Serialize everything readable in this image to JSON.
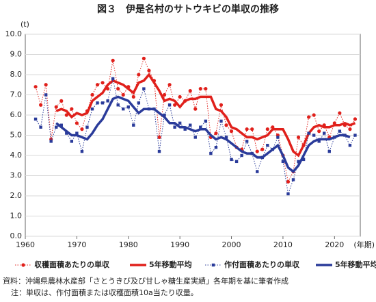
{
  "chart_data": {
    "type": "line",
    "title": "図３　伊是名村のサトウキビの単収の推移",
    "y_unit": "(t)",
    "x_unit": "(年期)",
    "xlim": [
      1960,
      2025
    ],
    "xticks": [
      1960,
      1970,
      1980,
      1990,
      2000,
      2010,
      2020
    ],
    "ylim": [
      0,
      10
    ],
    "yticks": [
      {
        "value": 0,
        "label": "0.0"
      },
      {
        "value": 1,
        "label": "1.0"
      },
      {
        "value": 2,
        "label": "2.0"
      },
      {
        "value": 3,
        "label": "3.0"
      },
      {
        "value": 4,
        "label": "4.0"
      },
      {
        "value": 5,
        "label": "5.0"
      },
      {
        "value": 6,
        "label": "6.0"
      },
      {
        "value": 7,
        "label": "7.0"
      },
      {
        "value": 8,
        "label": "8.0"
      },
      {
        "value": 9,
        "label": "9.0"
      },
      {
        "value": 10,
        "label": "10.0"
      }
    ],
    "grid": true,
    "series": [
      {
        "name": "収穫面積あたりの単収",
        "color": "#e0201b",
        "style": "dotted",
        "marker": "circle",
        "x": [
          1962,
          1963,
          1964,
          1965,
          1966,
          1967,
          1968,
          1969,
          1970,
          1971,
          1972,
          1973,
          1974,
          1975,
          1976,
          1977,
          1978,
          1979,
          1980,
          1981,
          1982,
          1983,
          1984,
          1985,
          1986,
          1987,
          1988,
          1989,
          1990,
          1991,
          1992,
          1993,
          1994,
          1995,
          1996,
          1997,
          1998,
          1999,
          2000,
          2001,
          2002,
          2003,
          2004,
          2005,
          2006,
          2007,
          2008,
          2009,
          2010,
          2011,
          2012,
          2013,
          2014,
          2015,
          2016,
          2017,
          2018,
          2019,
          2020,
          2021,
          2022,
          2023,
          2024
        ],
        "values": [
          7.4,
          6.5,
          7.5,
          4.8,
          6.4,
          6.7,
          6.0,
          6.3,
          5.6,
          5.3,
          6.2,
          7.0,
          7.5,
          7.6,
          7.3,
          8.7,
          7.3,
          7.0,
          7.4,
          6.9,
          8.0,
          8.8,
          8.2,
          7.7,
          4.9,
          7.0,
          7.5,
          6.5,
          6.9,
          6.7,
          7.2,
          6.3,
          7.3,
          7.3,
          4.9,
          5.1,
          6.5,
          5.5,
          5.2,
          4.4,
          4.3,
          5.3,
          5.3,
          4.2,
          4.3,
          5.3,
          5.4,
          5.0,
          4.0,
          2.7,
          3.2,
          4.9,
          4.5,
          5.9,
          6.0,
          5.2,
          5.5,
          4.9,
          5.6,
          6.1,
          5.5,
          5.3,
          5.8
        ]
      },
      {
        "name": "5年移動平均",
        "color": "#e0201b",
        "style": "thick",
        "x": [
          1966,
          1967,
          1968,
          1969,
          1970,
          1971,
          1972,
          1973,
          1974,
          1975,
          1976,
          1977,
          1978,
          1979,
          1980,
          1981,
          1982,
          1983,
          1984,
          1985,
          1986,
          1987,
          1988,
          1989,
          1990,
          1991,
          1992,
          1993,
          1994,
          1995,
          1996,
          1997,
          1998,
          1999,
          2000,
          2001,
          2002,
          2003,
          2004,
          2005,
          2006,
          2007,
          2008,
          2009,
          2010,
          2011,
          2012,
          2013,
          2014,
          2015,
          2016,
          2017,
          2018,
          2019,
          2020,
          2021,
          2022,
          2023,
          2024
        ],
        "values": [
          6.2,
          6.3,
          6.2,
          5.9,
          6.1,
          6.0,
          6.1,
          6.7,
          6.9,
          7.1,
          7.5,
          7.7,
          7.6,
          7.5,
          7.3,
          7.1,
          7.6,
          7.7,
          8.0,
          7.6,
          7.2,
          6.7,
          6.8,
          6.7,
          6.4,
          6.7,
          6.8,
          6.8,
          6.9,
          6.9,
          6.9,
          6.3,
          6.2,
          5.9,
          5.4,
          5.3,
          5.1,
          4.9,
          4.9,
          4.8,
          4.9,
          5.0,
          5.3,
          5.3,
          5.3,
          4.8,
          4.2,
          4.0,
          4.5,
          5.1,
          5.4,
          5.5,
          5.4,
          5.4,
          5.5,
          5.5,
          5.6,
          5.5,
          5.6
        ]
      },
      {
        "name": "作付面積あたりの単収",
        "color": "#2a3b9a",
        "style": "dotted",
        "marker": "square",
        "x": [
          1962,
          1963,
          1964,
          1965,
          1966,
          1967,
          1968,
          1969,
          1970,
          1971,
          1972,
          1973,
          1974,
          1975,
          1976,
          1977,
          1978,
          1979,
          1980,
          1981,
          1982,
          1983,
          1984,
          1985,
          1986,
          1987,
          1988,
          1989,
          1990,
          1991,
          1992,
          1993,
          1994,
          1995,
          1996,
          1997,
          1998,
          1999,
          2000,
          2001,
          2002,
          2003,
          2004,
          2005,
          2006,
          2007,
          2008,
          2009,
          2010,
          2011,
          2012,
          2013,
          2014,
          2015,
          2016,
          2017,
          2018,
          2019,
          2020,
          2021,
          2022,
          2023,
          2024
        ],
        "values": [
          5.8,
          5.4,
          7.0,
          4.7,
          5.4,
          5.5,
          5.1,
          4.7,
          5.1,
          4.2,
          5.4,
          6.3,
          6.6,
          6.6,
          6.7,
          7.8,
          6.5,
          6.3,
          6.4,
          5.5,
          6.6,
          7.3,
          6.3,
          6.3,
          4.2,
          6.0,
          6.5,
          5.4,
          5.6,
          5.3,
          5.5,
          4.9,
          5.4,
          5.7,
          4.1,
          4.4,
          5.7,
          4.9,
          3.8,
          3.7,
          4.0,
          4.7,
          4.1,
          3.2,
          3.9,
          4.5,
          4.3,
          4.9,
          3.7,
          2.1,
          2.8,
          3.7,
          3.8,
          5.1,
          5.0,
          4.7,
          5.1,
          4.2,
          4.9,
          5.2,
          5.0,
          4.5,
          5.0
        ]
      },
      {
        "name": "5年移動平均",
        "color": "#2a3b9a",
        "style": "thick",
        "x": [
          1966,
          1967,
          1968,
          1969,
          1970,
          1971,
          1972,
          1973,
          1974,
          1975,
          1976,
          1977,
          1978,
          1979,
          1980,
          1981,
          1982,
          1983,
          1984,
          1985,
          1986,
          1987,
          1988,
          1989,
          1990,
          1991,
          1992,
          1993,
          1994,
          1995,
          1996,
          1997,
          1998,
          1999,
          2000,
          2001,
          2002,
          2003,
          2004,
          2005,
          2006,
          2007,
          2008,
          2009,
          2010,
          2011,
          2012,
          2013,
          2014,
          2015,
          2016,
          2017,
          2018,
          2019,
          2020,
          2021,
          2022,
          2023
        ],
        "values": [
          5.6,
          5.4,
          5.2,
          5.0,
          5.0,
          4.9,
          4.8,
          5.1,
          5.5,
          5.8,
          6.3,
          6.8,
          6.9,
          6.8,
          6.7,
          6.4,
          6.1,
          6.3,
          6.3,
          6.3,
          6.1,
          5.9,
          5.6,
          5.6,
          5.4,
          5.4,
          5.3,
          5.2,
          5.3,
          5.3,
          5.0,
          4.8,
          4.9,
          4.8,
          4.6,
          4.4,
          4.2,
          4.1,
          4.1,
          3.9,
          3.9,
          4.1,
          4.3,
          4.5,
          4.0,
          3.4,
          3.2,
          3.5,
          4.0,
          4.5,
          4.7,
          4.8,
          4.8,
          4.8,
          4.9,
          5.0,
          5.0,
          4.9
        ]
      }
    ],
    "source": "資料：沖縄県農林水産部「さとうきび及び甘しゃ糖生産実績」各年期を基に筆者作成",
    "note": "注：単収は、作付面積または収穫面積10a当たり収量。"
  }
}
